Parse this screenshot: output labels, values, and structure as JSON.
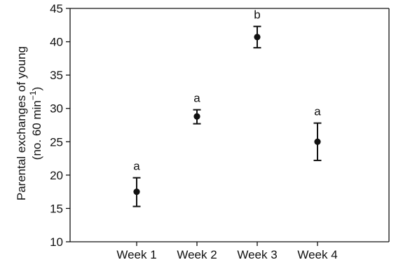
{
  "chart_data": {
    "type": "scatter",
    "categories": [
      "Week 1",
      "Week 2",
      "Week 3",
      "Week 4"
    ],
    "values": [
      17.5,
      28.8,
      40.7,
      25.0
    ],
    "error_low": [
      15.3,
      27.7,
      39.1,
      22.2
    ],
    "error_high": [
      19.6,
      29.8,
      42.3,
      27.8
    ],
    "point_labels": [
      "a",
      "a",
      "b",
      "a"
    ],
    "ylabel_line1": "Parental exchanges of young",
    "ylabel_line2_prefix": "(no. 60 min",
    "ylabel_line2_sup": "−1",
    "ylabel_line2_suffix": ")",
    "xlabel": "",
    "ylim": [
      10,
      45
    ],
    "yticks": [
      10,
      15,
      20,
      25,
      30,
      35,
      40,
      45
    ],
    "grid": false,
    "colors": {
      "marker": "#111111",
      "axis": "#111111"
    }
  }
}
